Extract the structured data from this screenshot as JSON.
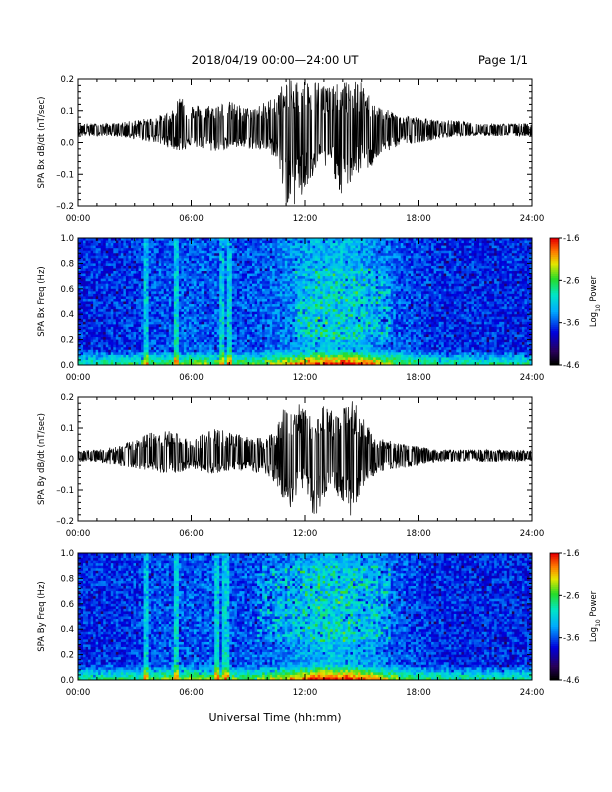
{
  "header": {
    "title": "2018/04/19   00:00—24:00 UT",
    "page": "Page 1/1"
  },
  "footer": {
    "xlabel": "Universal Time (hh:mm)"
  },
  "chart_data": [
    {
      "type": "line",
      "ylabel": "SPA Bx dB/dt (nT/sec)",
      "xlim": [
        0,
        24
      ],
      "ylim": [
        -0.2,
        0.2
      ],
      "yticks": [
        "0.2",
        "0.1",
        "0.0",
        "–0.1",
        "–0.2"
      ],
      "xticks": [
        "00:00",
        "06:00",
        "12:00",
        "18:00",
        "24:00"
      ],
      "baseline": 0.04,
      "series": [
        {
          "x": [
            0,
            1,
            2,
            3,
            4,
            5,
            5.5,
            6,
            7,
            8,
            9,
            10,
            10.5,
            11,
            11.5,
            12,
            12.5,
            13,
            13.5,
            14,
            14.5,
            15,
            15.5,
            16,
            17,
            18,
            19,
            20,
            21,
            22,
            23,
            24
          ],
          "env_high": [
            0.06,
            0.06,
            0.06,
            0.07,
            0.08,
            0.1,
            0.17,
            0.12,
            0.12,
            0.13,
            0.11,
            0.13,
            0.16,
            0.2,
            0.2,
            0.2,
            0.2,
            0.19,
            0.18,
            0.19,
            0.2,
            0.19,
            0.14,
            0.11,
            0.09,
            0.08,
            0.07,
            0.07,
            0.06,
            0.06,
            0.06,
            0.06
          ],
          "env_low": [
            0.02,
            0.02,
            0.02,
            0.01,
            0.0,
            -0.02,
            -0.03,
            -0.01,
            -0.03,
            -0.02,
            -0.02,
            -0.03,
            -0.05,
            -0.2,
            -0.2,
            -0.17,
            -0.1,
            -0.08,
            -0.1,
            -0.18,
            -0.12,
            -0.09,
            -0.08,
            -0.04,
            -0.01,
            0.0,
            0.01,
            0.02,
            0.02,
            0.02,
            0.02,
            0.02
          ]
        }
      ]
    },
    {
      "type": "heatmap",
      "ylabel": "SPA Bx Freq (Hz)",
      "xlim": [
        0,
        24
      ],
      "ylim": [
        0,
        1
      ],
      "yticks": [
        "1.0",
        "0.8",
        "0.6",
        "0.4",
        "0.2",
        "0.0"
      ],
      "xticks": [
        "00:00",
        "06:00",
        "12:00",
        "18:00",
        "24:00"
      ],
      "colorbar": {
        "label": "Log10 Power",
        "label_main": "Log",
        "label_sub": "10",
        "label_tail": " Power",
        "ticks": [
          "-1.6",
          "-2.6",
          "-3.6",
          "-4.6"
        ],
        "range": [
          -4.6,
          -1.6
        ]
      },
      "enhanced_columns_hours": [
        3.6,
        5.2,
        7.6,
        8.0
      ],
      "activity_region": {
        "x": [
          11.5,
          16.5
        ],
        "y": [
          0.2,
          0.75
        ]
      }
    },
    {
      "type": "line",
      "ylabel": "SPA By dB/dt (nT/sec)",
      "xlim": [
        0,
        24
      ],
      "ylim": [
        -0.2,
        0.2
      ],
      "yticks": [
        "0.2",
        "0.1",
        "0.0",
        "–0.1",
        "–0.2"
      ],
      "xticks": [
        "00:00",
        "06:00",
        "12:00",
        "18:00",
        "24:00"
      ],
      "baseline": 0.01,
      "series": [
        {
          "x": [
            0,
            1,
            2,
            3,
            4,
            5,
            6,
            7,
            8,
            9,
            10,
            10.5,
            11,
            11.5,
            12,
            12.5,
            13,
            13.5,
            14,
            14.5,
            15,
            15.5,
            16,
            17,
            18,
            19,
            20,
            21,
            22,
            23,
            24
          ],
          "env_high": [
            0.03,
            0.03,
            0.04,
            0.06,
            0.09,
            0.09,
            0.06,
            0.1,
            0.09,
            0.07,
            0.07,
            0.1,
            0.2,
            0.2,
            0.16,
            0.12,
            0.19,
            0.15,
            0.16,
            0.2,
            0.14,
            0.09,
            0.07,
            0.05,
            0.04,
            0.03,
            0.03,
            0.03,
            0.03,
            0.03,
            0.03
          ],
          "env_low": [
            -0.01,
            -0.01,
            -0.02,
            -0.03,
            -0.04,
            -0.05,
            -0.03,
            -0.05,
            -0.04,
            -0.04,
            -0.05,
            -0.08,
            -0.2,
            -0.14,
            -0.08,
            -0.2,
            -0.13,
            -0.09,
            -0.15,
            -0.19,
            -0.1,
            -0.06,
            -0.04,
            -0.03,
            -0.02,
            -0.01,
            -0.01,
            -0.01,
            -0.01,
            -0.01,
            -0.01
          ]
        }
      ]
    },
    {
      "type": "heatmap",
      "ylabel": "SPA By Freq (Hz)",
      "xlim": [
        0,
        24
      ],
      "ylim": [
        0,
        1
      ],
      "yticks": [
        "1.0",
        "0.8",
        "0.6",
        "0.4",
        "0.2",
        "0.0"
      ],
      "xticks": [
        "00:00",
        "06:00",
        "12:00",
        "18:00",
        "24:00"
      ],
      "colorbar": {
        "label": "Log10 Power",
        "label_main": "Log",
        "label_sub": "10",
        "label_tail": " Power",
        "ticks": [
          "-1.6",
          "-2.6",
          "-3.6",
          "-4.6"
        ],
        "range": [
          -4.6,
          -1.6
        ]
      },
      "enhanced_columns_hours": [
        3.6,
        5.2,
        7.3,
        7.8
      ],
      "activity_region": {
        "x": [
          9.5,
          16.5
        ],
        "y": [
          0.3,
          0.9
        ]
      }
    }
  ]
}
